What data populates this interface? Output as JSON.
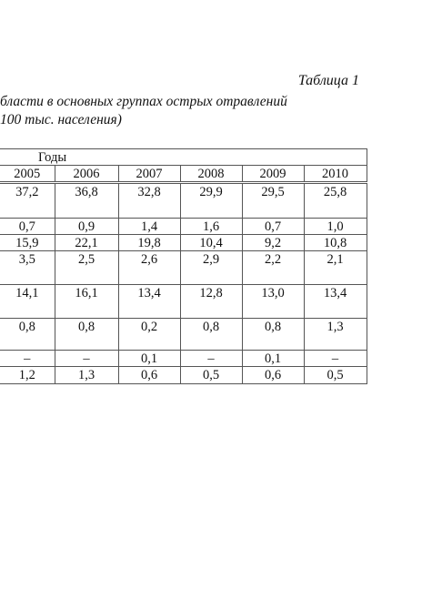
{
  "header": {
    "label": "Таблица 1",
    "title_lines": [
      "бласти в основных группах острых отравлений",
      "100 тыс. населения)"
    ]
  },
  "table": {
    "group_header": "Годы",
    "columns": [
      "2005",
      "2006",
      "2007",
      "2008",
      "2009",
      "2010"
    ],
    "rows": [
      [
        "37,2",
        "36,8",
        "32,8",
        "29,9",
        "29,5",
        "25,8"
      ],
      [
        "0,7",
        "0,9",
        "1,4",
        "1,6",
        "0,7",
        "1,0"
      ],
      [
        "15,9",
        "22,1",
        "19,8",
        "10,4",
        "9,2",
        "10,8"
      ],
      [
        "3,5",
        "2,5",
        "2,6",
        "2,9",
        "2,2",
        "2,1"
      ],
      [
        "14,1",
        "16,1",
        "13,4",
        "12,8",
        "13,0",
        "13,4"
      ],
      [
        "0,8",
        "0,8",
        "0,2",
        "0,8",
        "0,8",
        "1,3"
      ],
      [
        "–",
        "–",
        "0,1",
        "–",
        "0,1",
        "–"
      ],
      [
        "1,2",
        "1,3",
        "0,6",
        "0,5",
        "0,6",
        "0,5"
      ]
    ]
  }
}
